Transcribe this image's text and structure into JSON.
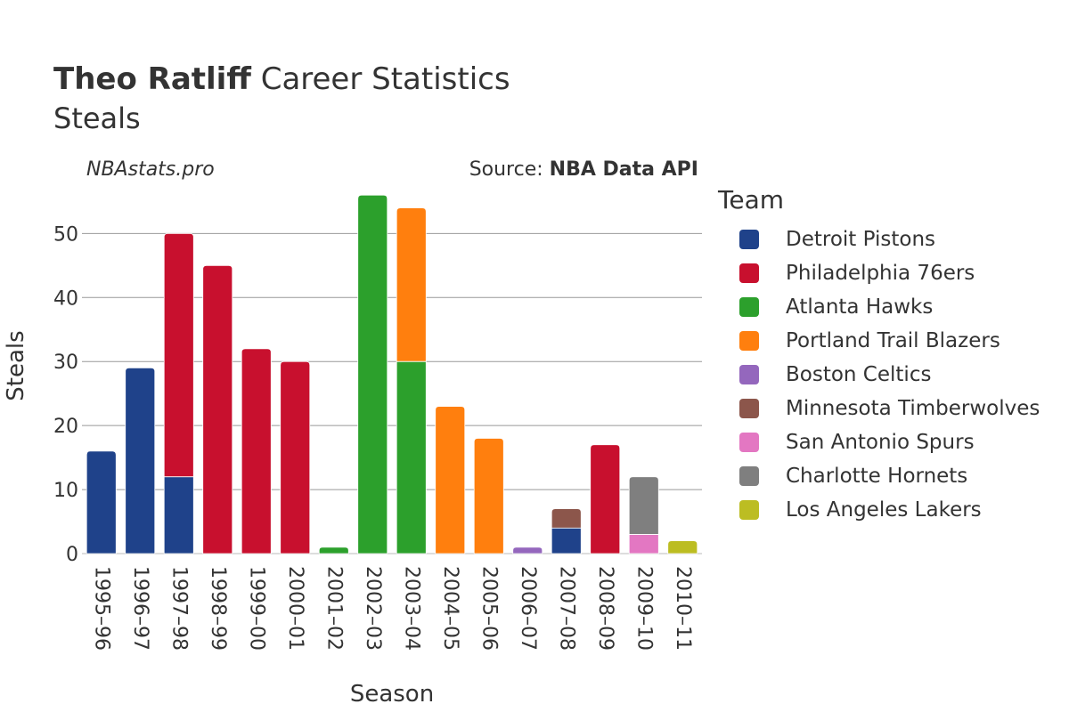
{
  "header": {
    "player": "Theo Ratliff",
    "title_rest": "Career Statistics",
    "subtitle": "Steals",
    "watermark": "NBAstats.pro",
    "source_prefix": "Source: ",
    "source_name": "NBA Data API"
  },
  "legend": {
    "title": "Team"
  },
  "chart_data": {
    "type": "bar",
    "stacked": true,
    "xlabel": "Season",
    "ylabel": "Steals",
    "ylim": [
      0,
      57
    ],
    "yticks": [
      0,
      10,
      20,
      30,
      40,
      50
    ],
    "grid": true,
    "legend_position": "right",
    "categories": [
      "1995–96",
      "1996–97",
      "1997–98",
      "1998–99",
      "1999–00",
      "2000–01",
      "2001–02",
      "2002–03",
      "2003–04",
      "2004–05",
      "2005–06",
      "2006–07",
      "2007–08",
      "2008–09",
      "2009–10",
      "2010–11"
    ],
    "series": [
      {
        "name": "Detroit Pistons",
        "color": "#1f428a",
        "values": [
          16,
          29,
          12,
          0,
          0,
          0,
          0,
          0,
          0,
          0,
          0,
          0,
          4,
          0,
          0,
          0
        ]
      },
      {
        "name": "Philadelphia 76ers",
        "color": "#c8102e",
        "values": [
          0,
          0,
          38,
          45,
          32,
          30,
          0,
          0,
          0,
          0,
          0,
          0,
          0,
          17,
          0,
          0
        ]
      },
      {
        "name": "Atlanta Hawks",
        "color": "#2ca02c",
        "values": [
          0,
          0,
          0,
          0,
          0,
          0,
          1,
          56,
          30,
          0,
          0,
          0,
          0,
          0,
          0,
          0
        ]
      },
      {
        "name": "Portland Trail Blazers",
        "color": "#ff7f0e",
        "values": [
          0,
          0,
          0,
          0,
          0,
          0,
          0,
          0,
          24,
          23,
          18,
          0,
          0,
          0,
          0,
          0
        ]
      },
      {
        "name": "Boston Celtics",
        "color": "#9467bd",
        "values": [
          0,
          0,
          0,
          0,
          0,
          0,
          0,
          0,
          0,
          0,
          0,
          1,
          0,
          0,
          0,
          0
        ]
      },
      {
        "name": "Minnesota Timberwolves",
        "color": "#8c564b",
        "values": [
          0,
          0,
          0,
          0,
          0,
          0,
          0,
          0,
          0,
          0,
          0,
          0,
          3,
          0,
          0,
          0
        ]
      },
      {
        "name": "San Antonio Spurs",
        "color": "#e377c2",
        "values": [
          0,
          0,
          0,
          0,
          0,
          0,
          0,
          0,
          0,
          0,
          0,
          0,
          0,
          0,
          3,
          0
        ]
      },
      {
        "name": "Charlotte Hornets",
        "color": "#7f7f7f",
        "values": [
          0,
          0,
          0,
          0,
          0,
          0,
          0,
          0,
          0,
          0,
          0,
          0,
          0,
          0,
          9,
          0
        ]
      },
      {
        "name": "Los Angeles Lakers",
        "color": "#bcbd22",
        "values": [
          0,
          0,
          0,
          0,
          0,
          0,
          0,
          0,
          0,
          0,
          0,
          0,
          0,
          0,
          0,
          2
        ]
      }
    ]
  }
}
